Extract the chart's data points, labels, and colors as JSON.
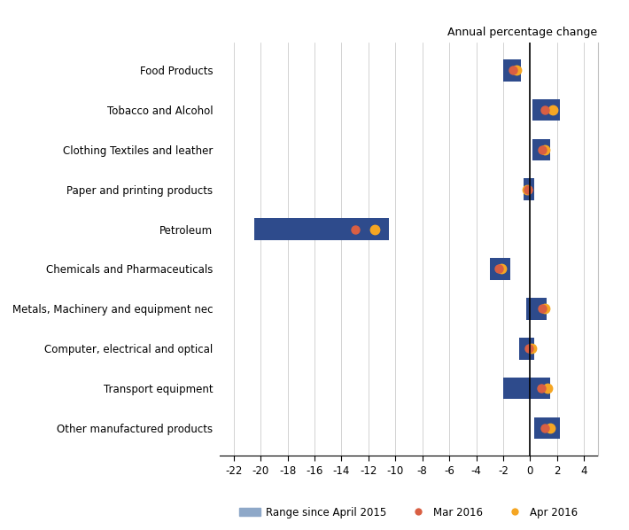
{
  "categories": [
    "Food Products",
    "Tobacco and Alcohol",
    "Clothing Textiles and leather",
    "Paper and printing products",
    "Petroleum",
    "Chemicals and Pharmaceuticals",
    "Metals, Machinery and equipment nec",
    "Computer, electrical and optical",
    "Transport equipment",
    "Other manufactured products"
  ],
  "range_min": [
    -2.0,
    0.2,
    0.2,
    -0.5,
    -20.5,
    -3.0,
    -0.3,
    -0.8,
    -2.0,
    0.3
  ],
  "range_max": [
    -0.7,
    2.2,
    1.5,
    0.3,
    -10.5,
    -1.5,
    1.2,
    0.3,
    1.5,
    2.2
  ],
  "mar_2016": [
    -1.3,
    1.1,
    0.9,
    -0.15,
    -13.0,
    -2.3,
    0.9,
    -0.1,
    0.8,
    1.1
  ],
  "apr_2016": [
    -1.0,
    1.7,
    1.1,
    -0.25,
    -11.5,
    -2.1,
    1.1,
    0.1,
    1.3,
    1.5
  ],
  "bar_color": "#2E4B8C",
  "mar_color": "#D95F43",
  "apr_color": "#F5A623",
  "bar_height": 0.55,
  "xlim": [
    -23,
    5
  ],
  "xticks": [
    -22,
    -20,
    -18,
    -16,
    -14,
    -12,
    -10,
    -8,
    -6,
    -4,
    -2,
    0,
    2,
    4
  ],
  "title": "Annual percentage change",
  "legend_labels": [
    "Range since April 2015",
    "Mar 2016",
    "Apr 2016"
  ],
  "legend_bar_color": "#8EA8C8",
  "figsize": [
    7.1,
    5.98
  ],
  "dpi": 100
}
